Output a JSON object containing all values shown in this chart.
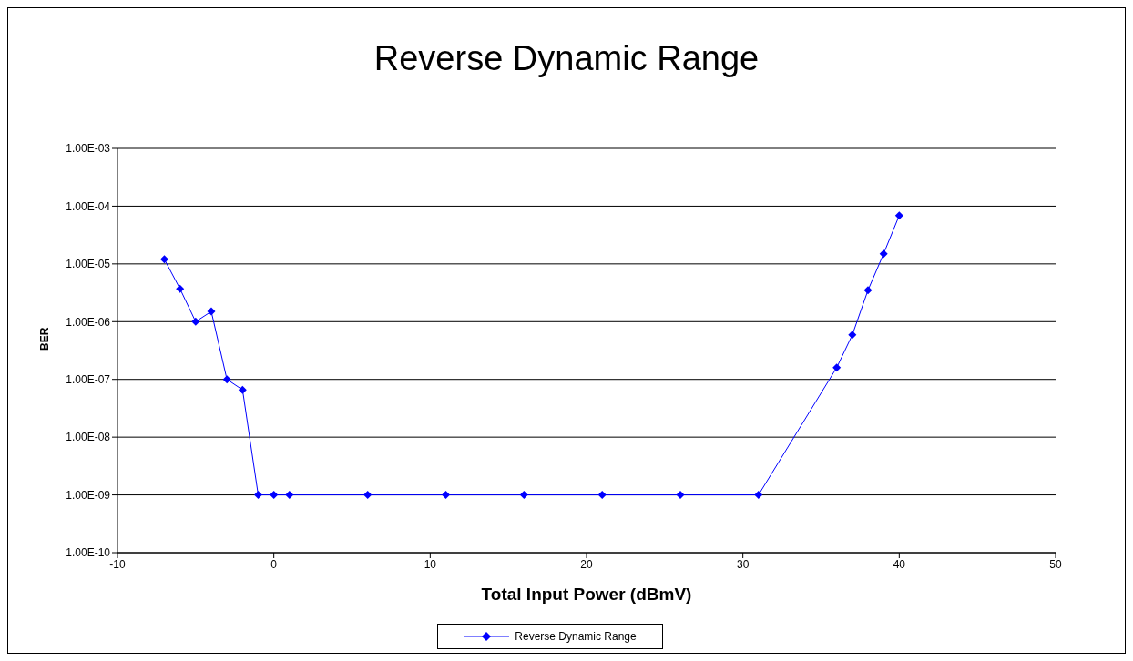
{
  "chart_data": {
    "type": "line",
    "title": "Reverse Dynamic Range",
    "xlabel": "Total Input Power (dBmV)",
    "ylabel": "BER",
    "x": [
      -7,
      -6,
      -5,
      -4,
      -3,
      -2,
      -1,
      0,
      1,
      6,
      11,
      16,
      21,
      26,
      31,
      36,
      37,
      38,
      39,
      40
    ],
    "series": [
      {
        "name": "Reverse Dynamic Range",
        "color": "#0000ff",
        "values": [
          1.2e-05,
          3.7e-06,
          1e-06,
          1.5e-06,
          1e-07,
          6.6e-08,
          1e-09,
          1e-09,
          1e-09,
          1e-09,
          1e-09,
          1e-09,
          1e-09,
          1e-09,
          1e-09,
          1.6e-07,
          5.9e-07,
          3.5e-06,
          1.5e-05,
          6.9e-05
        ]
      }
    ],
    "xlim": [
      -10,
      50
    ],
    "xticks": [
      -10,
      0,
      10,
      20,
      30,
      40,
      50
    ],
    "ylim": [
      1e-10,
      0.001
    ],
    "yticks": [
      {
        "value": 1e-10,
        "label": "1.00E-10"
      },
      {
        "value": 1e-09,
        "label": "1.00E-09"
      },
      {
        "value": 1e-08,
        "label": "1.00E-08"
      },
      {
        "value": 1e-07,
        "label": "1.00E-07"
      },
      {
        "value": 1e-06,
        "label": "1.00E-06"
      },
      {
        "value": 1e-05,
        "label": "1.00E-05"
      },
      {
        "value": 0.0001,
        "label": "1.00E-04"
      },
      {
        "value": 0.001,
        "label": "1.00E-03"
      }
    ],
    "log": "y",
    "grid": "y",
    "legend": "bottom",
    "marker": "diamond",
    "line_style": "solid"
  }
}
